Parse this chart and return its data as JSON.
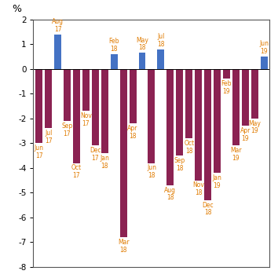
{
  "labels": [
    "Jun\n17",
    "Jul\n17",
    "Aug\n17",
    "Sep\n17",
    "Oct\n17",
    "Nov\n17",
    "Dec\n17",
    "Jan\n18",
    "Feb\n18",
    "Mar\n18",
    "Apr\n18",
    "May\n18",
    "Jun\n18",
    "Jul\n18",
    "Aug\n18",
    "Sep\n18",
    "Oct\n18",
    "Nov\n18",
    "Dec\n18",
    "Jan\n19",
    "Feb\n19",
    "Mar\n19",
    "Apr\n19",
    "May\n19",
    "Jun\n19"
  ],
  "values": [
    -3.0,
    -2.4,
    1.4,
    -2.1,
    -3.8,
    -1.7,
    -3.1,
    -3.4,
    0.6,
    -6.8,
    -2.2,
    0.65,
    -3.8,
    0.8,
    -4.7,
    -3.5,
    -2.8,
    -4.5,
    -5.3,
    -4.2,
    -0.4,
    -3.1,
    -2.3,
    -2.0,
    0.5
  ],
  "positive_color": "#4472C4",
  "negative_color": "#8B2252",
  "label_color": "#E07B00",
  "ylabel": "%",
  "ylim": [
    -8,
    2
  ],
  "yticks": [
    -8,
    -7,
    -6,
    -5,
    -4,
    -3,
    -2,
    -1,
    0,
    1,
    2
  ],
  "background_color": "#FFFFFF"
}
